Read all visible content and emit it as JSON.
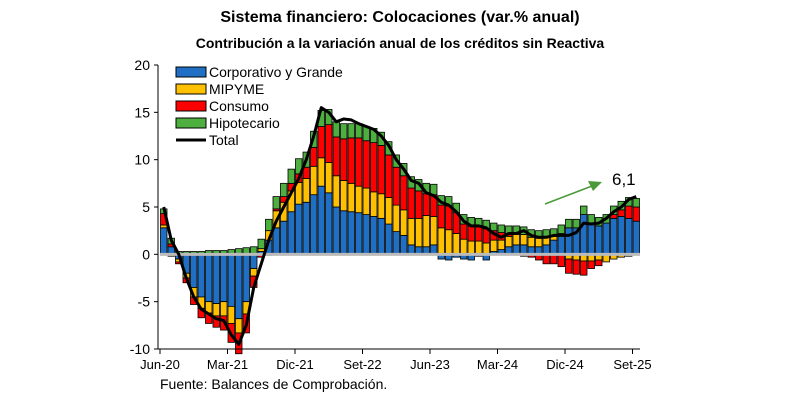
{
  "chart_data": {
    "type": "bar",
    "stacked": true,
    "title": "Sistema financiero: Colocaciones (var.% anual)",
    "subtitle": "Contribución a la variación anual de los créditos sin Reactiva",
    "xlabel": "",
    "ylabel": "",
    "ylim": [
      -10,
      20
    ],
    "yticks": [
      "-10",
      "-5",
      "0",
      "5",
      "10",
      "15",
      "20"
    ],
    "xtick_labels": [
      "Jun-20",
      "Mar-21",
      "Dic-21",
      "Set-22",
      "Jun-23",
      "Mar-24",
      "Dic-24",
      "Set-25"
    ],
    "grid": false,
    "legend_position": "top-left",
    "source": "Fuente: Balances de Comprobación.",
    "annotation": {
      "text": "6,1",
      "arrow_color": "#4a9a3a"
    },
    "series": [
      {
        "name": "Corporativo y Grande",
        "color": "#1f6fc5",
        "values": [
          2.8,
          0.8,
          -0.5,
          -2.0,
          -3.5,
          -4.5,
          -5,
          -5.2,
          -5.0,
          -5.5,
          -6.8,
          -5.0,
          -1.5,
          0.3,
          1.5,
          2.8,
          3.5,
          4.5,
          5.3,
          5.5,
          6.3,
          7.2,
          6.5,
          5.0,
          4.6,
          4.5,
          4.4,
          4.2,
          4.0,
          3.8,
          3.2,
          2.4,
          2.0,
          1.0,
          0.8,
          0.8,
          1.0,
          -0.5,
          -0.6,
          -0.3,
          -0.5,
          -0.6,
          -0.2,
          -0.6,
          0.3,
          0.5,
          0.8,
          1.0,
          1.0,
          0.8,
          0.8,
          1.0,
          1.5,
          2.2,
          2.8,
          2.8,
          4.2,
          3.3,
          3.0,
          3.3,
          3.8,
          4.0,
          3.8,
          3.5
        ]
      },
      {
        "name": "MIPYME",
        "color": "#ffc000",
        "values": [
          0.3,
          -0.2,
          -0.3,
          -0.5,
          -1.0,
          -1.2,
          -1.2,
          -1.3,
          -1.5,
          -1.8,
          -1.5,
          -1.3,
          -0.8,
          0.3,
          1.0,
          1.8,
          2.0,
          2.2,
          2.3,
          2.5,
          3.0,
          3.0,
          3.2,
          3.3,
          3.2,
          3.0,
          2.8,
          2.8,
          2.6,
          2.6,
          2.8,
          2.8,
          2.7,
          2.8,
          3.0,
          3.3,
          3.0,
          2.8,
          2.6,
          2.2,
          1.6,
          1.4,
          1.4,
          1.2,
          1.2,
          1.0,
          1.1,
          1.1,
          1.1,
          1.0,
          0.9,
          0.8,
          0.4,
          -0.1,
          -0.5,
          -0.6,
          -0.7,
          -0.7,
          -0.6,
          -0.8,
          -0.5,
          -0.3,
          -0.2,
          0
        ]
      },
      {
        "name": "Consumo",
        "color": "#ff0000",
        "values": [
          1.2,
          0.3,
          -0.2,
          -0.5,
          -0.8,
          -1.0,
          -1.1,
          -1.2,
          -1.5,
          -2.0,
          -2.2,
          -2.0,
          -1.2,
          -0.3,
          -0.1,
          0.2,
          0.6,
          0.8,
          0.9,
          1.2,
          2.0,
          3.3,
          4.0,
          4.1,
          4.4,
          4.8,
          5.1,
          5.0,
          5.2,
          5.1,
          4.5,
          4.0,
          3.6,
          3.2,
          2.9,
          2.3,
          2.3,
          2.4,
          2.5,
          2.2,
          1.6,
          1.6,
          1.5,
          1.5,
          1.0,
          0.8,
          0.3,
          0.1,
          -0.2,
          -0.3,
          -0.6,
          -1.0,
          -1.0,
          -1.2,
          -1.5,
          -1.5,
          -1.5,
          -0.8,
          -0.6,
          0,
          0.4,
          0.7,
          1.3,
          1.5
        ]
      },
      {
        "name": "Hipotecario",
        "color": "#4caf3e",
        "values": [
          0.5,
          0.6,
          0.3,
          0.3,
          0.3,
          0.3,
          0.4,
          0.4,
          0.4,
          0.5,
          0.6,
          0.7,
          0.8,
          1.0,
          1.2,
          1.3,
          1.4,
          1.5,
          1.6,
          1.6,
          1.7,
          1.7,
          1.6,
          1.6,
          1.6,
          1.5,
          1.5,
          1.5,
          1.5,
          1.4,
          1.4,
          1.3,
          1.3,
          1.2,
          1.2,
          1.1,
          1.1,
          1.0,
          1.0,
          1.0,
          1.0,
          0.9,
          0.9,
          0.9,
          0.8,
          0.8,
          0.8,
          0.8,
          0.8,
          0.8,
          0.8,
          0.8,
          0.8,
          0.9,
          0.9,
          0.9,
          0.9,
          0.9,
          0.9,
          0.9,
          0.9,
          0.9,
          0.9,
          0.9
        ]
      }
    ],
    "total": {
      "name": "Total",
      "color": "#000000",
      "values": [
        5.0,
        1.5,
        0.0,
        -2.5,
        -4.5,
        -5.8,
        -6.3,
        -6.8,
        -7.0,
        -8.5,
        -9.5,
        -7.5,
        -3.5,
        -1.0,
        1.5,
        3.5,
        5.0,
        6.5,
        8.0,
        10.0,
        12.5,
        15.5,
        15.0,
        14.0,
        14.3,
        14.2,
        13.8,
        13.5,
        13.2,
        12.5,
        11.5,
        10.0,
        9.0,
        7.8,
        7.5,
        6.5,
        6.2,
        5.5,
        5.2,
        4.5,
        3.5,
        3.0,
        3.0,
        2.8,
        2.2,
        1.8,
        2.2,
        2.2,
        2.5,
        2.0,
        1.8,
        1.8,
        2.0,
        2.0,
        2.0,
        2.3,
        3.3,
        3.2,
        3.3,
        3.8,
        4.5,
        5.0,
        5.8,
        6.1
      ]
    }
  }
}
